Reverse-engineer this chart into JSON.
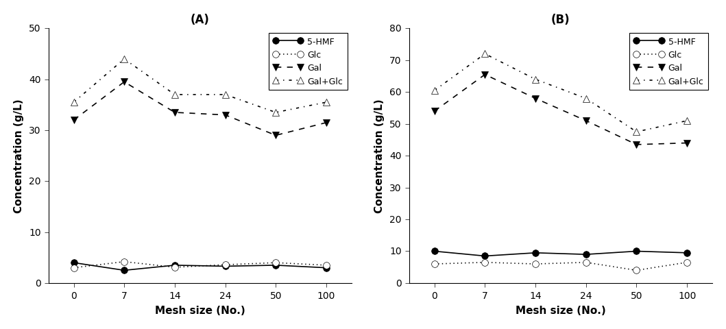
{
  "x_labels": [
    "0",
    "7",
    "14",
    "24",
    "50",
    "100"
  ],
  "x_positions": [
    0,
    1,
    2,
    3,
    4,
    5
  ],
  "A": {
    "title": "(A)",
    "ylabel": "Concentration (g/L)",
    "xlabel": "Mesh size (No.)",
    "ylim": [
      0,
      50
    ],
    "yticks": [
      0,
      10,
      20,
      30,
      40,
      50
    ],
    "series": {
      "5-HMF": {
        "values": [
          4.0,
          2.5,
          3.5,
          3.3,
          3.5,
          3.0
        ],
        "linestyle": "-",
        "marker": "o",
        "markerfacecolor": "black",
        "color": "black"
      },
      "Glc": {
        "values": [
          3.0,
          4.2,
          3.1,
          3.6,
          4.0,
          3.5
        ],
        "linestyle": ":",
        "marker": "o",
        "markerfacecolor": "white",
        "color": "black"
      },
      "Gal": {
        "values": [
          32.0,
          39.5,
          33.5,
          33.0,
          29.0,
          31.5
        ],
        "linestyle": "--",
        "marker": "v",
        "markerfacecolor": "black",
        "color": "black"
      },
      "Gal+Glc": {
        "values": [
          35.5,
          44.0,
          37.0,
          37.0,
          33.5,
          35.5
        ],
        "linestyle": "-.",
        "marker": "^",
        "markerfacecolor": "white",
        "color": "black"
      }
    }
  },
  "B": {
    "title": "(B)",
    "ylabel": "Concentration (g/L)",
    "xlabel": "Mesh size (No.)",
    "ylim": [
      0,
      80
    ],
    "yticks": [
      0,
      10,
      20,
      30,
      40,
      50,
      60,
      70,
      80
    ],
    "series": {
      "5-HMF": {
        "values": [
          10.0,
          8.5,
          9.5,
          9.0,
          10.0,
          9.5
        ],
        "linestyle": "-",
        "marker": "o",
        "markerfacecolor": "black",
        "color": "black"
      },
      "Glc": {
        "values": [
          6.0,
          6.5,
          6.0,
          6.5,
          4.0,
          6.5
        ],
        "linestyle": ":",
        "marker": "o",
        "markerfacecolor": "white",
        "color": "black"
      },
      "Gal": {
        "values": [
          54.0,
          65.5,
          58.0,
          51.0,
          43.5,
          44.0
        ],
        "linestyle": "--",
        "marker": "v",
        "markerfacecolor": "black",
        "color": "black"
      },
      "Gal+Glc": {
        "values": [
          60.5,
          72.0,
          64.0,
          58.0,
          47.5,
          51.0
        ],
        "linestyle": "-.",
        "marker": "^",
        "markerfacecolor": "white",
        "color": "black"
      }
    }
  },
  "legend_order": [
    "5-HMF",
    "Glc",
    "Gal",
    "Gal+Glc"
  ],
  "title_fontsize": 12,
  "label_fontsize": 11,
  "tick_fontsize": 10,
  "legend_fontsize": 9,
  "markersize": 7,
  "linewidth": 1.2
}
